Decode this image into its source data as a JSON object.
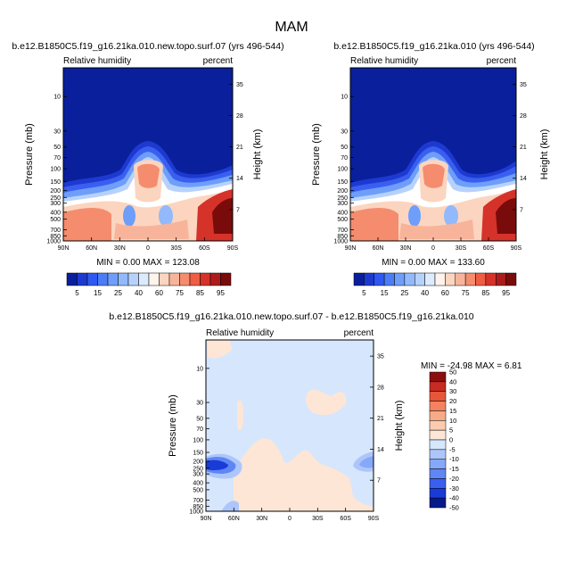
{
  "page_title": "MAM",
  "colors": {
    "main_scale": [
      "#0a1f9c",
      "#1d3ad0",
      "#2e58f0",
      "#4c7df7",
      "#6e9ef9",
      "#92b9fb",
      "#b6d2fc",
      "#dcebfd",
      "#fff3ec",
      "#fbd5c0",
      "#f8b49a",
      "#f58c6e",
      "#ee5d44",
      "#d5322a",
      "#ad1c1c",
      "#7a0b0b"
    ],
    "diff_scale": [
      "#061a8c",
      "#1a3bd6",
      "#3a5ff0",
      "#5f86f5",
      "#86a8f8",
      "#adc6fa",
      "#d6e6fc",
      "#fde6d6",
      "#fbcbb0",
      "#f8aa88",
      "#f48260",
      "#e65638",
      "#c82b22",
      "#8c0d0d"
    ]
  },
  "chart_data": [
    {
      "type": "heatmap",
      "title": "b.e12.B1850C5.f19_g16.21ka.010.new.topo.surf.07 (yrs 496-544)",
      "variable_label": "Relative humidity",
      "units_label": "percent",
      "ylabel": "Pressure (mb)",
      "y2label": "Height (km)",
      "x_ticks": [
        "90N",
        "60N",
        "30N",
        "0",
        "30S",
        "60S",
        "90S"
      ],
      "y_ticks": [
        "10",
        "30",
        "50",
        "70",
        "100",
        "150",
        "200",
        "250",
        "300",
        "400",
        "500",
        "700",
        "850",
        "1000"
      ],
      "y2_ticks": [
        "35",
        "28",
        "21",
        "14",
        "7"
      ],
      "stats": "MIN =   0.00  MAX = 123.08",
      "colorbar_labels": [
        "5",
        "15",
        "25",
        "40",
        "60",
        "75",
        "85",
        "95"
      ],
      "grid": false
    },
    {
      "type": "heatmap",
      "title": "b.e12.B1850C5.f19_g16.21ka.010 (yrs 496-544)",
      "variable_label": "Relative humidity",
      "units_label": "percent",
      "ylabel": "Pressure (mb)",
      "y2label": "Height (km)",
      "x_ticks": [
        "90N",
        "60N",
        "30N",
        "0",
        "30S",
        "60S",
        "90S"
      ],
      "y_ticks": [
        "10",
        "30",
        "50",
        "70",
        "100",
        "150",
        "200",
        "250",
        "300",
        "400",
        "500",
        "700",
        "850",
        "1000"
      ],
      "y2_ticks": [
        "35",
        "28",
        "21",
        "14",
        "7"
      ],
      "stats": "MIN =   0.00  MAX = 133.60",
      "colorbar_labels": [
        "5",
        "15",
        "25",
        "40",
        "60",
        "75",
        "85",
        "95"
      ],
      "grid": false
    },
    {
      "type": "heatmap",
      "title": "b.e12.B1850C5.f19_g16.21ka.010.new.topo.surf.07 - b.e12.B1850C5.f19_g16.21ka.010",
      "variable_label": "Relative humidity",
      "units_label": "percent",
      "ylabel": "Pressure (mb)",
      "y2label": "Height (km)",
      "x_ticks": [
        "90N",
        "60N",
        "30N",
        "0",
        "30S",
        "60S",
        "90S"
      ],
      "y_ticks": [
        "10",
        "30",
        "50",
        "70",
        "100",
        "150",
        "200",
        "250",
        "300",
        "400",
        "500",
        "700",
        "850",
        "1000"
      ],
      "y2_ticks": [
        "35",
        "28",
        "21",
        "14",
        "7"
      ],
      "stats": "MIN = -24.98  MAX =   6.81",
      "colorbar_labels": [
        "50",
        "40",
        "30",
        "20",
        "15",
        "10",
        "5",
        "0",
        "-5",
        "-10",
        "-15",
        "-20",
        "-30",
        "-40",
        "-50"
      ],
      "grid": false
    }
  ]
}
